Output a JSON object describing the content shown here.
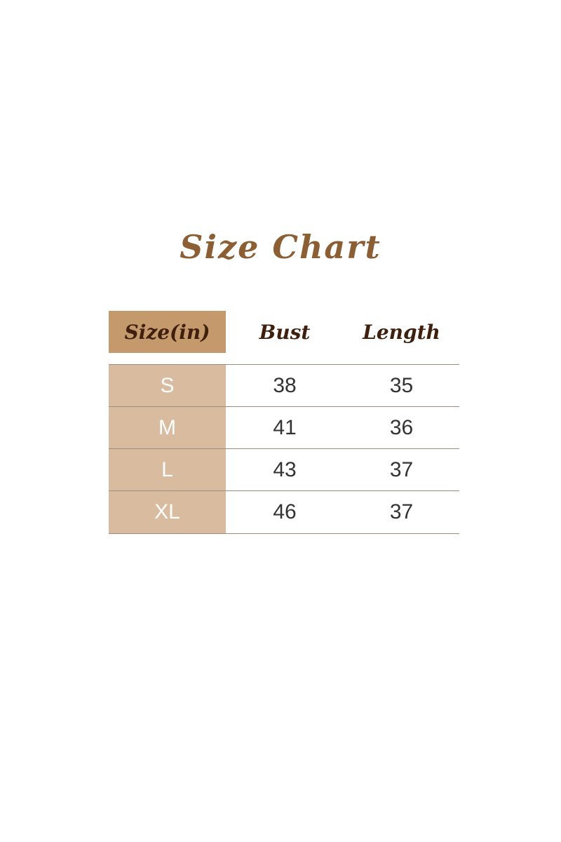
{
  "title": "Size Chart",
  "colors": {
    "title": "#8B5E34",
    "header_cell": "#C49A6C",
    "size_column": "#D9BC9F",
    "header_text": "#3F1F0E"
  },
  "table": {
    "headers": [
      "Size(in)",
      "Bust",
      "Length"
    ],
    "rows": [
      [
        "S",
        "38",
        "35"
      ],
      [
        "M",
        "41",
        "36"
      ],
      [
        "L",
        "43",
        "37"
      ],
      [
        "XL",
        "46",
        "37"
      ]
    ]
  }
}
